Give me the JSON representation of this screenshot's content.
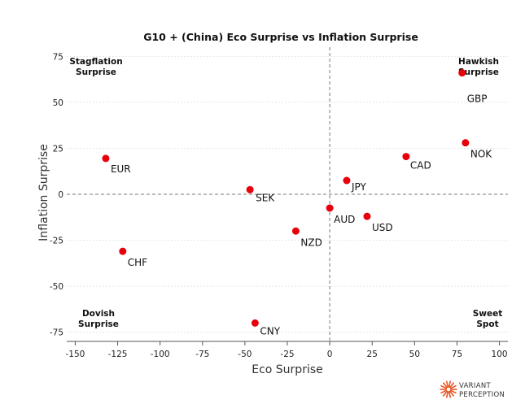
{
  "chart_data": {
    "type": "scatter",
    "title": "G10 + (China) Eco Surprise vs Inflation Surprise",
    "xlabel": "Eco Surprise",
    "ylabel": "Inflation Surprise",
    "xlim": [
      -155,
      105
    ],
    "ylim": [
      -80,
      80
    ],
    "x_ticks": [
      -150,
      -125,
      -100,
      -75,
      -50,
      -25,
      0,
      25,
      50,
      75,
      100
    ],
    "y_ticks": [
      -75,
      -50,
      -25,
      0,
      25,
      50,
      75
    ],
    "grid": true,
    "zero_lines": "dashed",
    "marker_color": "#e8000b",
    "points": [
      {
        "label": "EUR",
        "x": -132,
        "y": 19.5
      },
      {
        "label": "CHF",
        "x": -122,
        "y": -31
      },
      {
        "label": "SEK",
        "x": -47,
        "y": 2.5
      },
      {
        "label": "NZD",
        "x": -20,
        "y": -20
      },
      {
        "label": "CNY",
        "x": -44,
        "y": -70
      },
      {
        "label": "AUD",
        "x": 0,
        "y": -7.5
      },
      {
        "label": "JPY",
        "x": 10,
        "y": 7.5
      },
      {
        "label": "USD",
        "x": 22,
        "y": -12
      },
      {
        "label": "CAD",
        "x": 45,
        "y": 20.5
      },
      {
        "label": "NOK",
        "x": 80,
        "y": 28
      },
      {
        "label": "GBP",
        "x": 78,
        "y": 66
      }
    ],
    "quadrant_labels": [
      {
        "line1": "Stagflation",
        "line2": "Surprise",
        "position": "top-left"
      },
      {
        "line1": "Hawkish",
        "line2": "Surprise",
        "position": "top-right"
      },
      {
        "line1": "Dovish",
        "line2": "Surprise",
        "position": "bottom-left"
      },
      {
        "line1": "Sweet",
        "line2": "Spot",
        "position": "bottom-right"
      }
    ]
  },
  "logo": {
    "line1": "VARIANT",
    "line2": "PERCEPTION",
    "color": "#e8501e"
  }
}
